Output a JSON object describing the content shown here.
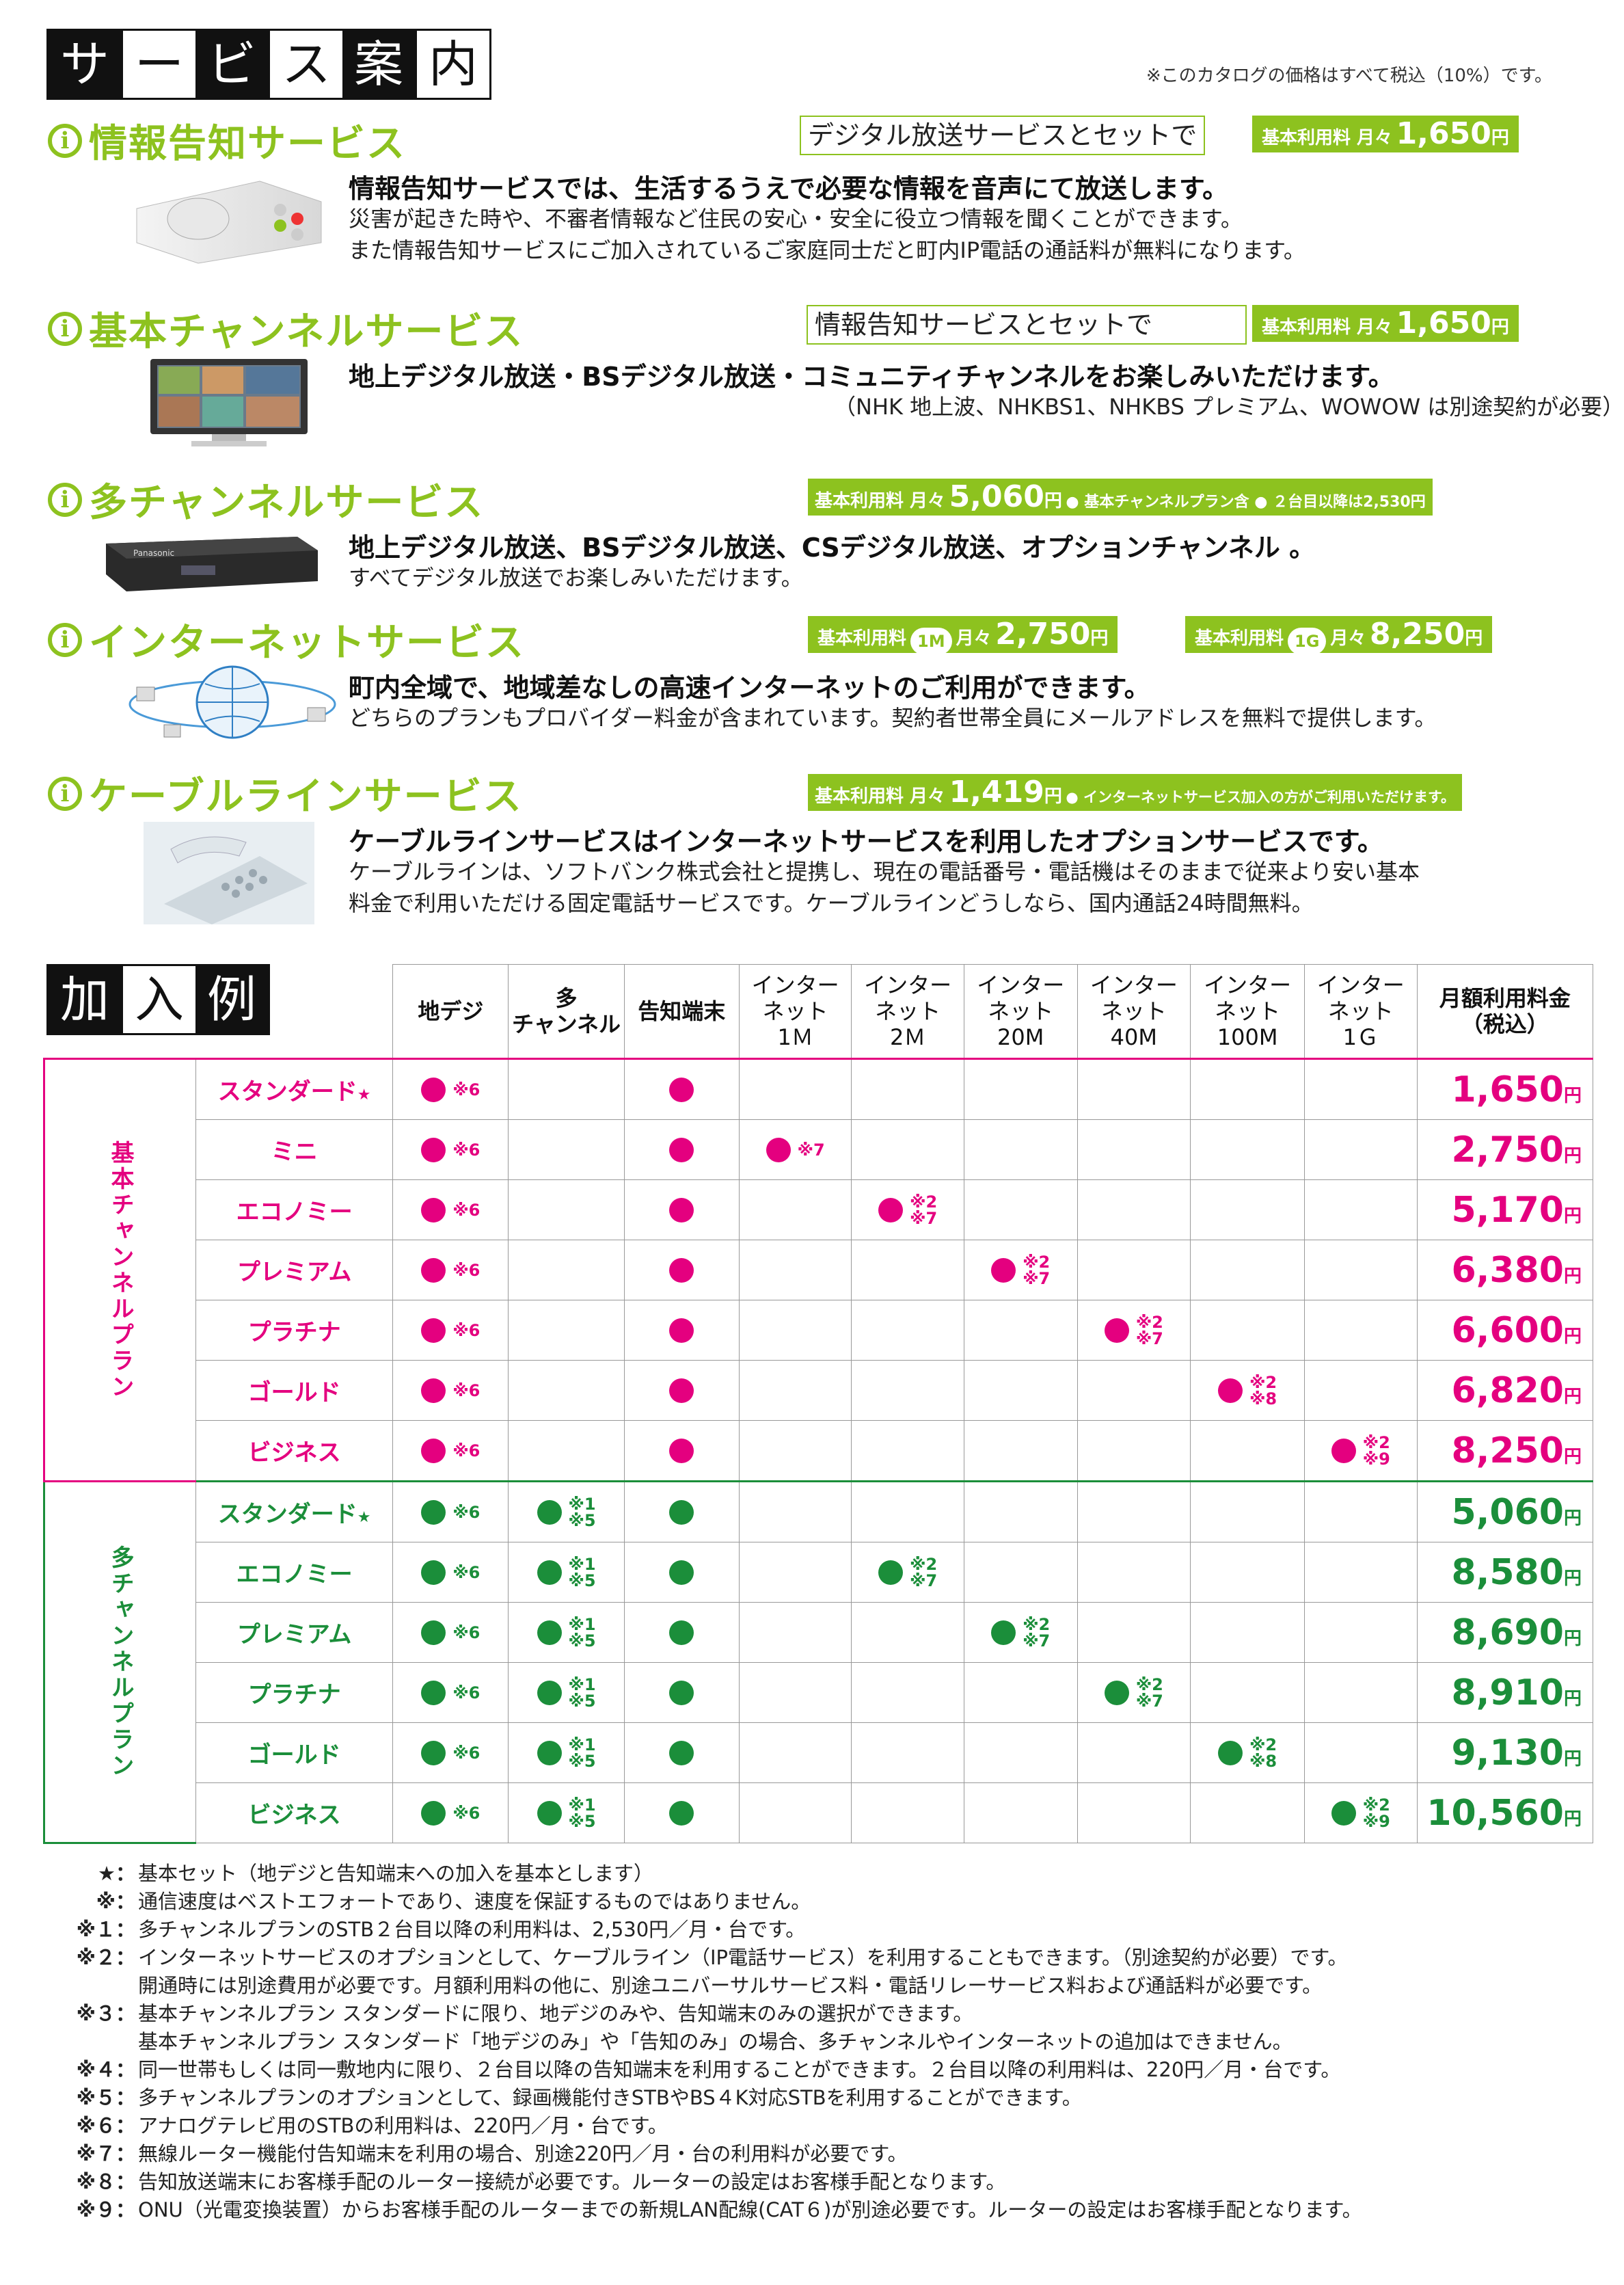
{
  "header": {
    "chars": [
      "サ",
      "ー",
      "ビ",
      "ス",
      "案",
      "内"
    ],
    "tax_note": "※このカタログの価格はすべて税込（10%）です。"
  },
  "colors": {
    "accent_green": "#8dc21f",
    "pink": "#e4007f",
    "dark_green": "#1b8e3a"
  },
  "services": [
    {
      "name": "情報告知サービス",
      "set_label": "デジタル放送サービスとセットで",
      "price_prefix": "基本利用料 月々",
      "price": "1,650",
      "unit": "円",
      "headline": "情報告知サービスでは、生活するうえで必要な情報を音声にて放送します。",
      "body": [
        "災害が起きた時や、不審者情報など住民の安心・安全に役立つ情報を聞くことができます。",
        "また情報告知サービスにご加入されているご家庭同士だと町内IP電話の通話料が無料になります。"
      ],
      "icon": "speaker-terminal-image"
    },
    {
      "name": "基本チャンネルサービス",
      "set_label": "情報告知サービスとセットで",
      "price_prefix": "基本利用料 月々",
      "price": "1,650",
      "unit": "円",
      "headline": "地上デジタル放送・BSデジタル放送・コミュニティチャンネルをお楽しみいただけます。",
      "body": [
        "（NHK 地上波、NHKBS1、NHKBS プレミアム、WOWOW は別途契約が必要）"
      ],
      "icon": "tv-image"
    },
    {
      "name": "多チャンネルサービス",
      "price_prefix": "基本利用料 月々",
      "price": "5,060",
      "unit": "円",
      "price_note": "● 基本チャンネルプラン含 ● ２台目以降は2,530円",
      "headline": "地上デジタル放送、BSデジタル放送、CSデジタル放送、オプションチャンネル 。",
      "body": [
        "すべてデジタル放送でお楽しみいただけます。"
      ],
      "icon": "set-top-box-image"
    },
    {
      "name": "インターネットサービス",
      "plans": [
        {
          "prefix": "基本利用料",
          "badge": "1M",
          "mid": "月々",
          "price": "2,750",
          "unit": "円"
        },
        {
          "prefix": "基本利用料",
          "badge": "1G",
          "mid": "月々",
          "price": "8,250",
          "unit": "円"
        }
      ],
      "headline": "町内全域で、地域差なしの高速インターネットのご利用ができます。",
      "body": [
        "どちらのプランもプロバイダー料金が含まれています。契約者世帯全員にメールアドレスを無料で提供します。"
      ],
      "icon": "globe-network-image"
    },
    {
      "name": "ケーブルラインサービス",
      "price_prefix": "基本利用料 月々",
      "price": "1,419",
      "unit": "円",
      "price_note": "● インターネットサービス加入の方がご利用いただけます。",
      "headline": "ケーブルラインサービスはインターネットサービスを利用したオプションサービスです。",
      "body": [
        "ケーブルラインは、ソフトバンク株式会社と提携し、現在の電話番号・電話機はそのままで従来より安い基本",
        "料金で利用いただける固定電話サービスです。ケーブルラインどうしなら、国内通話24時間無料。"
      ],
      "icon": "phone-image"
    }
  ],
  "table": {
    "title_chars": [
      "加",
      "入",
      "例"
    ],
    "headers": [
      "地デジ",
      "多\nチャンネル",
      "告知端末",
      "インター\nネット\n1Ｍ",
      "インター\nネット\n2Ｍ",
      "インター\nネット\n20M",
      "インター\nネット\n40M",
      "インター\nネット\n100M",
      "インター\nネット\n1Ｇ",
      "月額利用料金\n（税込）"
    ],
    "groups": [
      {
        "label": "基本チャンネルプラン",
        "color": "pink",
        "rows": [
          {
            "name": "スタンダード",
            "star": "★",
            "chideji": "※6",
            "multi": null,
            "kochi": true,
            "net_col": null,
            "net_note": null,
            "price": "1,650",
            "unit": "円"
          },
          {
            "name": "ミニ",
            "star": "",
            "chideji": "※6",
            "multi": null,
            "kochi": true,
            "net_col": 0,
            "net_note": [
              "※7"
            ],
            "price": "2,750",
            "unit": "円"
          },
          {
            "name": "エコノミー",
            "star": "",
            "chideji": "※6",
            "multi": null,
            "kochi": true,
            "net_col": 1,
            "net_note": [
              "※2",
              "※7"
            ],
            "price": "5,170",
            "unit": "円"
          },
          {
            "name": "プレミアム",
            "star": "",
            "chideji": "※6",
            "multi": null,
            "kochi": true,
            "net_col": 2,
            "net_note": [
              "※2",
              "※7"
            ],
            "price": "6,380",
            "unit": "円"
          },
          {
            "name": "プラチナ",
            "star": "",
            "chideji": "※6",
            "multi": null,
            "kochi": true,
            "net_col": 3,
            "net_note": [
              "※2",
              "※7"
            ],
            "price": "6,600",
            "unit": "円"
          },
          {
            "name": "ゴールド",
            "star": "",
            "chideji": "※6",
            "multi": null,
            "kochi": true,
            "net_col": 4,
            "net_note": [
              "※2",
              "※8"
            ],
            "price": "6,820",
            "unit": "円"
          },
          {
            "name": "ビジネス",
            "star": "",
            "chideji": "※6",
            "multi": null,
            "kochi": true,
            "net_col": 5,
            "net_note": [
              "※2",
              "※9"
            ],
            "price": "8,250",
            "unit": "円"
          }
        ]
      },
      {
        "label": "多チャンネルプラン",
        "color": "green",
        "rows": [
          {
            "name": "スタンダード",
            "star": "★",
            "chideji": "※6",
            "multi": [
              "※1",
              "※5"
            ],
            "kochi": true,
            "net_col": null,
            "net_note": null,
            "price": "5,060",
            "unit": "円"
          },
          {
            "name": "エコノミー",
            "star": "",
            "chideji": "※6",
            "multi": [
              "※1",
              "※5"
            ],
            "kochi": true,
            "net_col": 1,
            "net_note": [
              "※2",
              "※7"
            ],
            "price": "8,580",
            "unit": "円"
          },
          {
            "name": "プレミアム",
            "star": "",
            "chideji": "※6",
            "multi": [
              "※1",
              "※5"
            ],
            "kochi": true,
            "net_col": 2,
            "net_note": [
              "※2",
              "※7"
            ],
            "price": "8,690",
            "unit": "円"
          },
          {
            "name": "プラチナ",
            "star": "",
            "chideji": "※6",
            "multi": [
              "※1",
              "※5"
            ],
            "kochi": true,
            "net_col": 3,
            "net_note": [
              "※2",
              "※7"
            ],
            "price": "8,910",
            "unit": "円"
          },
          {
            "name": "ゴールド",
            "star": "",
            "chideji": "※6",
            "multi": [
              "※1",
              "※5"
            ],
            "kochi": true,
            "net_col": 4,
            "net_note": [
              "※2",
              "※8"
            ],
            "price": "9,130",
            "unit": "円"
          },
          {
            "name": "ビジネス",
            "star": "",
            "chideji": "※6",
            "multi": [
              "※1",
              "※5"
            ],
            "kochi": true,
            "net_col": 5,
            "net_note": [
              "※2",
              "※9"
            ],
            "price": "10,560",
            "unit": "円"
          }
        ]
      }
    ]
  },
  "notes": [
    {
      "k": "★：",
      "t": "基本セット（地デジと告知端末への加入を基本とします）"
    },
    {
      "k": "※：",
      "t": "通信速度はベストエフォートであり、速度を保証するものではありません。"
    },
    {
      "k": "※１：",
      "t": "多チャンネルプランのSTB２台目以降の利用料は、2,530円／月・台です。"
    },
    {
      "k": "※２：",
      "t": "インターネットサービスのオプションとして、ケーブルライン（IP電話サービス）を利用することもできます。（別途契約が必要）です。"
    },
    {
      "k": "",
      "t": "開通時には別途費用が必要です。月額利用料の他に、別途ユニバーサルサービス料・電話リレーサービス料および通話料が必要です。"
    },
    {
      "k": "※３：",
      "t": "基本チャンネルプラン スタンダードに限り、地デジのみや、告知端末のみの選択ができます。"
    },
    {
      "k": "",
      "t": "基本チャンネルプラン スタンダード「地デジのみ」や「告知のみ」の場合、多チャンネルやインターネットの追加はできません。"
    },
    {
      "k": "※４：",
      "t": "同一世帯もしくは同一敷地内に限り、２台目以降の告知端末を利用することができます。２台目以降の利用料は、220円／月・台です。"
    },
    {
      "k": "※５：",
      "t": "多チャンネルプランのオプションとして、録画機能付きSTBやBS４K対応STBを利用することができます。"
    },
    {
      "k": "※６：",
      "t": "アナログテレビ用のSTBの利用料は、220円／月・台です。"
    },
    {
      "k": "※７：",
      "t": "無線ルーター機能付告知端末を利用の場合、別途220円／月・台の利用料が必要です。"
    },
    {
      "k": "※８：",
      "t": "告知放送端末にお客様手配のルーター接続が必要です。ルーターの設定はお客様手配となります。"
    },
    {
      "k": "※９：",
      "t": "ONU（光電変換装置）からお客様手配のルーターまでの新規LAN配線(CAT６)が別途必要です。ルーターの設定はお客様手配となります。"
    }
  ]
}
